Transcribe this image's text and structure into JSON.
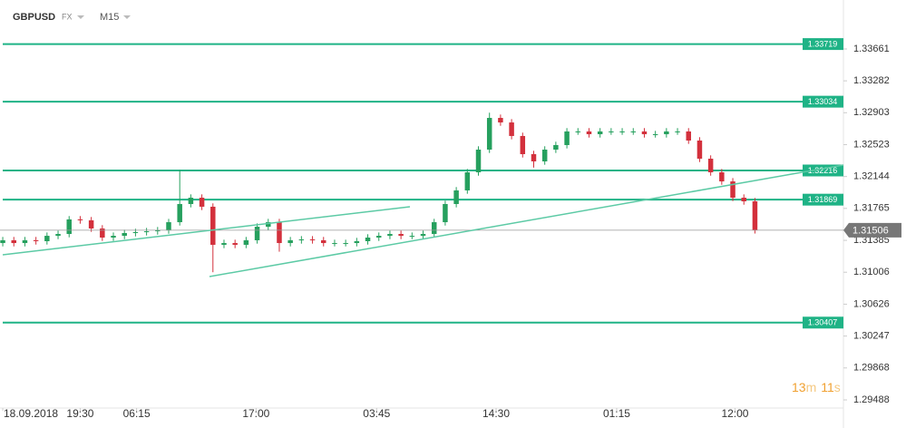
{
  "header": {
    "symbol": "GBPUSD",
    "market": "FX",
    "interval": "M15"
  },
  "chart_data": {
    "type": "candlestick",
    "up_color": "#26a05e",
    "down_color": "#d3303c",
    "level_color": "#1fb386",
    "xlim": [
      -0.25,
      76
    ],
    "ylim": [
      1.29391,
      1.34243
    ],
    "xticks": [
      {
        "value": 0,
        "label": "18.09.2018"
      },
      {
        "value": 7,
        "label": "19:30"
      },
      {
        "value": 12.1,
        "label": "06:15"
      },
      {
        "value": 22.9,
        "label": "17:00"
      },
      {
        "value": 33.8,
        "label": "03:45"
      },
      {
        "value": 44.6,
        "label": "14:30"
      },
      {
        "value": 55.5,
        "label": "01:15"
      },
      {
        "value": 66.2,
        "label": "12:00"
      }
    ],
    "yticks": [
      1.33661,
      1.33282,
      1.32903,
      1.32523,
      1.32144,
      1.31765,
      1.31385,
      1.31006,
      1.30626,
      1.30247,
      1.29868,
      1.29488
    ],
    "levels": [
      1.33719,
      1.33034,
      1.32216,
      1.31869,
      1.30407
    ],
    "last_price": 1.31506,
    "timer": [
      "13",
      "m",
      "11",
      "s"
    ],
    "open": [
      1.31353,
      1.31386,
      1.31353,
      1.31386,
      1.31375,
      1.31439,
      1.31461,
      1.31634,
      1.31623,
      1.31526,
      1.31418,
      1.31439,
      1.31472,
      1.31483,
      1.31493,
      1.31504,
      1.31601,
      1.31817,
      1.31892,
      1.31785,
      1.31332,
      1.31353,
      1.31332,
      1.31386,
      1.31547,
      1.31601,
      1.31353,
      1.31386,
      1.31396,
      1.31386,
      1.31353,
      1.31353,
      1.31353,
      1.31375,
      1.31418,
      1.31439,
      1.31461,
      1.31439,
      1.31439,
      1.31461,
      1.31601,
      1.31817,
      1.31979,
      1.32194,
      1.32464,
      1.32841,
      1.32787,
      1.32626,
      1.3241,
      1.32324,
      1.32464,
      1.32518,
      1.3268,
      1.3268,
      1.32647,
      1.3268,
      1.3268,
      1.3268,
      1.3268,
      1.32647,
      1.32647,
      1.3268,
      1.3268,
      1.32572,
      1.32356,
      1.32194,
      1.32086,
      1.31892,
      1.31849
    ],
    "high": [
      1.31426,
      1.31426,
      1.31426,
      1.31426,
      1.31479,
      1.31501,
      1.31674,
      1.31674,
      1.31663,
      1.31566,
      1.31479,
      1.31512,
      1.31523,
      1.31533,
      1.31544,
      1.31641,
      1.3222,
      1.31932,
      1.31932,
      1.31825,
      1.31393,
      1.31393,
      1.31426,
      1.31587,
      1.31641,
      1.31641,
      1.31426,
      1.31436,
      1.31436,
      1.31426,
      1.31393,
      1.31393,
      1.31415,
      1.31458,
      1.31479,
      1.31501,
      1.31501,
      1.31479,
      1.31501,
      1.31641,
      1.31857,
      1.32019,
      1.32234,
      1.32504,
      1.32903,
      1.32881,
      1.32827,
      1.32666,
      1.3245,
      1.32504,
      1.32558,
      1.3272,
      1.3272,
      1.3272,
      1.3272,
      1.3272,
      1.3272,
      1.3272,
      1.3272,
      1.32687,
      1.3272,
      1.3272,
      1.3272,
      1.32612,
      1.32396,
      1.32234,
      1.32126,
      1.31932,
      1.31889
    ],
    "low": [
      1.31313,
      1.31313,
      1.31313,
      1.31335,
      1.31335,
      1.31399,
      1.31421,
      1.31583,
      1.31486,
      1.31378,
      1.31378,
      1.31399,
      1.31432,
      1.31443,
      1.31453,
      1.31464,
      1.31561,
      1.31777,
      1.31745,
      1.31006,
      1.31292,
      1.31292,
      1.31292,
      1.31346,
      1.31507,
      1.3125,
      1.31313,
      1.31346,
      1.31346,
      1.31313,
      1.31313,
      1.31313,
      1.31313,
      1.31335,
      1.31378,
      1.31399,
      1.31399,
      1.31399,
      1.31399,
      1.31421,
      1.31561,
      1.31777,
      1.31939,
      1.32154,
      1.32424,
      1.32747,
      1.32586,
      1.3237,
      1.3225,
      1.32284,
      1.32424,
      1.32478,
      1.3264,
      1.32607,
      1.32607,
      1.3264,
      1.3264,
      1.3264,
      1.32607,
      1.32607,
      1.32607,
      1.3264,
      1.32532,
      1.32316,
      1.32154,
      1.32046,
      1.31852,
      1.31809,
      1.31466
    ],
    "close": [
      1.31386,
      1.31353,
      1.31386,
      1.31375,
      1.31439,
      1.31461,
      1.31634,
      1.31623,
      1.31526,
      1.31418,
      1.31439,
      1.31472,
      1.31483,
      1.31493,
      1.31504,
      1.31601,
      1.31817,
      1.31892,
      1.31785,
      1.31332,
      1.31353,
      1.31332,
      1.31386,
      1.31547,
      1.31601,
      1.31353,
      1.31386,
      1.31396,
      1.31386,
      1.31353,
      1.31353,
      1.31353,
      1.31375,
      1.31418,
      1.31439,
      1.31461,
      1.31439,
      1.31439,
      1.31461,
      1.31601,
      1.31817,
      1.31979,
      1.32194,
      1.32464,
      1.32841,
      1.32787,
      1.32626,
      1.3241,
      1.32324,
      1.32464,
      1.32518,
      1.3268,
      1.3268,
      1.32647,
      1.3268,
      1.3268,
      1.3268,
      1.3268,
      1.32647,
      1.32647,
      1.3268,
      1.3268,
      1.32572,
      1.32356,
      1.32194,
      1.32086,
      1.31892,
      1.31849,
      1.31506
    ]
  }
}
